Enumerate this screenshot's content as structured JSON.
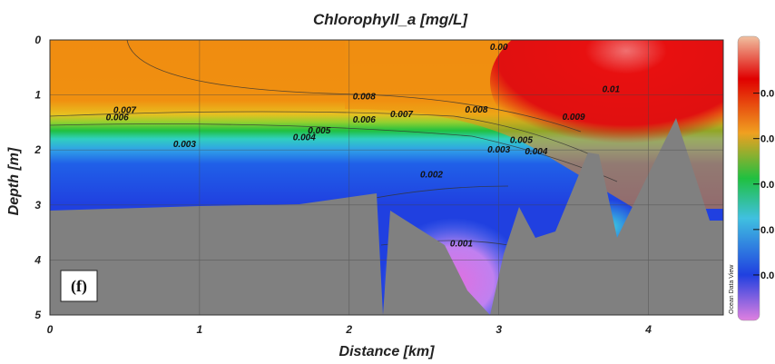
{
  "chart_data": {
    "type": "heatmap",
    "title": "Chlorophyll_a [mg/L]",
    "xlabel": "Distance [km]",
    "ylabel": "Depth [m]",
    "xlim": [
      0,
      4.5
    ],
    "ylim": [
      5,
      0
    ],
    "x_ticks": [
      0,
      1,
      2,
      3,
      4
    ],
    "y_ticks": [
      0,
      1,
      2,
      3,
      4,
      5
    ],
    "grid": true,
    "panel_label": "(f)",
    "watermark": "Ocean Data View",
    "colorbar": {
      "orientation": "vertical",
      "placement": "right",
      "tick_labels": [
        "0.0",
        "0.0",
        "0.0",
        "0.0",
        "0.0"
      ],
      "tick_values": [
        0.01,
        0.008,
        0.006,
        0.004,
        0.002
      ],
      "range": [
        0,
        0.0125
      ],
      "colors": [
        "#e080e0",
        "#2040e0",
        "#40c0e0",
        "#20c040",
        "#f0a020",
        "#e00000",
        "#f0c0a0"
      ]
    },
    "contour_labels": [
      {
        "text": "0.007",
        "x": 0.5,
        "y": 1.33
      },
      {
        "text": "0.006",
        "x": 0.45,
        "y": 1.46
      },
      {
        "text": "0.003",
        "x": 0.9,
        "y": 1.95
      },
      {
        "text": "0.005",
        "x": 1.8,
        "y": 1.7
      },
      {
        "text": "0.004",
        "x": 1.7,
        "y": 1.82
      },
      {
        "text": "0.008",
        "x": 2.1,
        "y": 1.08
      },
      {
        "text": "0.006",
        "x": 2.1,
        "y": 1.5
      },
      {
        "text": "0.007",
        "x": 2.35,
        "y": 1.4
      },
      {
        "text": "0.008",
        "x": 2.85,
        "y": 1.32
      },
      {
        "text": "0.003",
        "x": 3.0,
        "y": 2.05
      },
      {
        "text": "0.002",
        "x": 2.55,
        "y": 2.5
      },
      {
        "text": "0.005",
        "x": 3.15,
        "y": 1.87
      },
      {
        "text": "0.004",
        "x": 3.25,
        "y": 2.08
      },
      {
        "text": "0.009",
        "x": 3.5,
        "y": 1.45
      },
      {
        "text": "0.01",
        "x": 3.75,
        "y": 0.95
      },
      {
        "text": "0.001",
        "x": 2.75,
        "y": 3.75
      },
      {
        "text": "0.00",
        "x": 3.0,
        "y": 0.18
      }
    ]
  }
}
